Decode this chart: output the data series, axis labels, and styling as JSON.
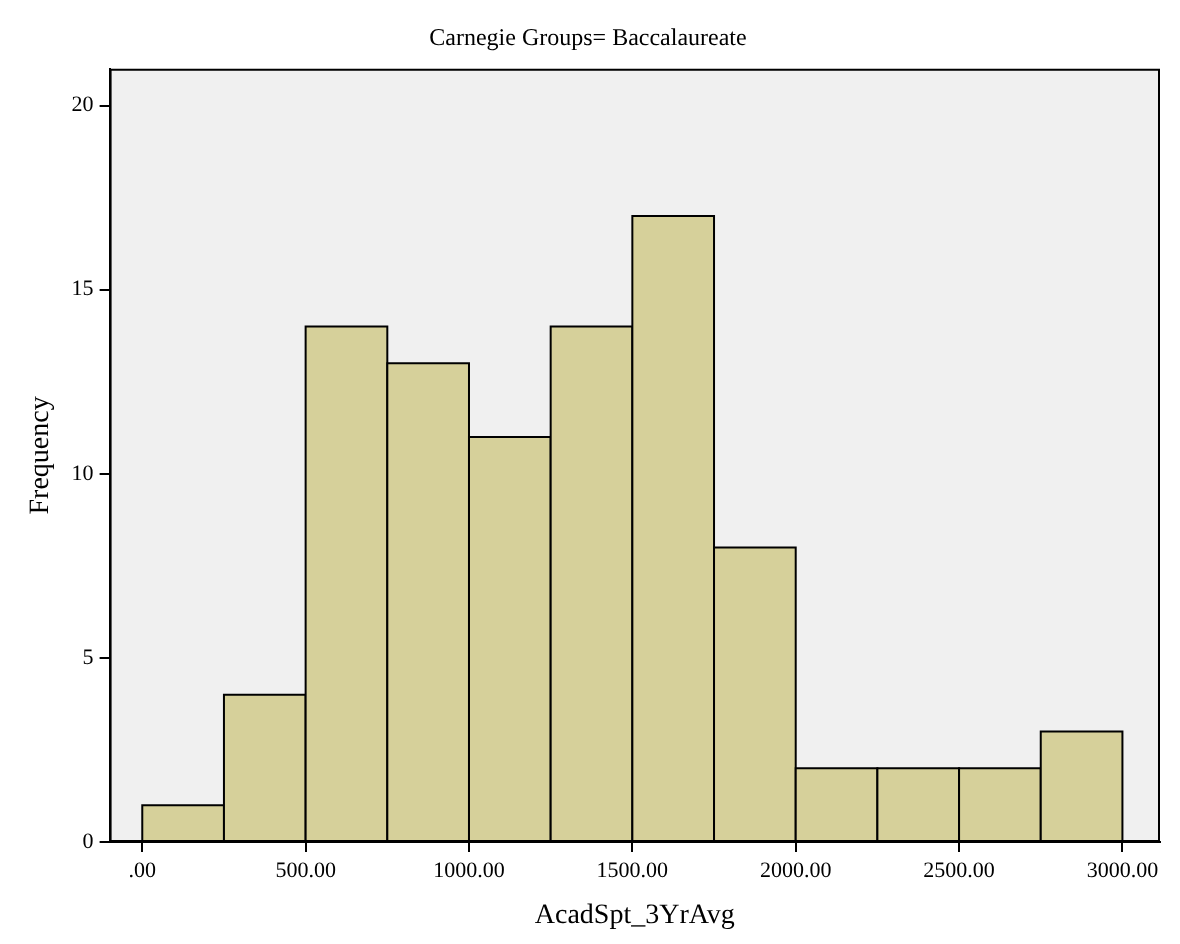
{
  "chart_data": {
    "type": "histogram",
    "title": "Carnegie Groups= Baccalaureate",
    "xlabel": "AcadSpt_3YrAvg",
    "ylabel": "Frequency",
    "bins": [
      0,
      250,
      500,
      750,
      1000,
      1250,
      1500,
      1750,
      2000,
      2250,
      2500,
      2750,
      3000
    ],
    "values": [
      1,
      4,
      14,
      13,
      11,
      14,
      17,
      8,
      2,
      2,
      2,
      3
    ],
    "color": "#d6d09a",
    "xlim": [
      -100,
      3115
    ],
    "ylim": [
      0,
      21
    ],
    "xticks": [
      {
        "value": 0,
        "label": ".00"
      },
      {
        "value": 500,
        "label": "500.00"
      },
      {
        "value": 1000,
        "label": "1000.00"
      },
      {
        "value": 1500,
        "label": "1500.00"
      },
      {
        "value": 2000,
        "label": "2000.00"
      },
      {
        "value": 2500,
        "label": "2500.00"
      },
      {
        "value": 3000,
        "label": "3000.00"
      }
    ],
    "yticks": [
      0,
      5,
      10,
      15,
      20
    ],
    "grid": false,
    "legend": false
  }
}
